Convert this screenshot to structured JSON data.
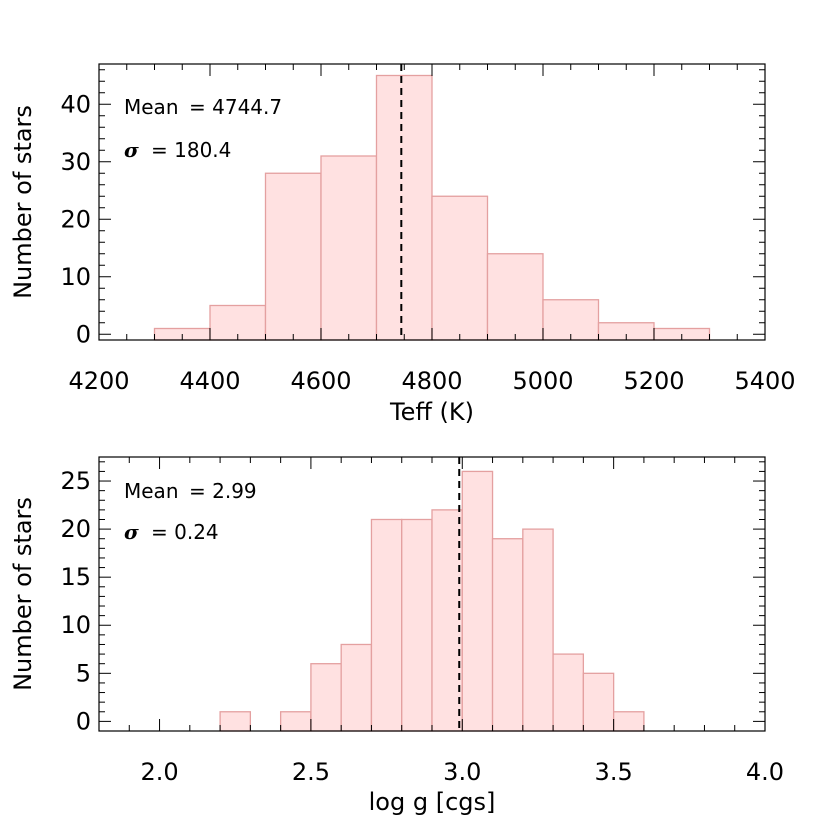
{
  "colors": {
    "bar_fill": "#ffe1e1",
    "bar_stroke": "#e4a0a0",
    "mean_line": "#000000",
    "axis": "#000000"
  },
  "chart_data": [
    {
      "type": "bar",
      "name": "teff",
      "xlabel": "Teff (K)",
      "ylabel": "Number of stars",
      "xlim": [
        4200,
        5400
      ],
      "ylim": [
        -1,
        47
      ],
      "xticks": [
        4200,
        4400,
        4600,
        4800,
        5000,
        5200,
        5400
      ],
      "xtick_labels": [
        "4200",
        "4400",
        "4600",
        "4800",
        "5000",
        "5200",
        "5400"
      ],
      "xminor_step": 50,
      "yticks": [
        0,
        10,
        20,
        30,
        40
      ],
      "ytick_labels": [
        "0",
        "10",
        "20",
        "30",
        "40"
      ],
      "yminor_step": 2,
      "bins": [
        {
          "x0": 4300,
          "x1": 4400,
          "count": 1
        },
        {
          "x0": 4400,
          "x1": 4500,
          "count": 5
        },
        {
          "x0": 4500,
          "x1": 4600,
          "count": 28
        },
        {
          "x0": 4600,
          "x1": 4700,
          "count": 31
        },
        {
          "x0": 4700,
          "x1": 4800,
          "count": 45
        },
        {
          "x0": 4800,
          "x1": 4900,
          "count": 24
        },
        {
          "x0": 4900,
          "x1": 5000,
          "count": 14
        },
        {
          "x0": 5000,
          "x1": 5100,
          "count": 6
        },
        {
          "x0": 5100,
          "x1": 5200,
          "count": 2
        },
        {
          "x0": 5200,
          "x1": 5300,
          "count": 1
        }
      ],
      "mean": 4744.7,
      "sigma": 180.4,
      "annotations": {
        "mean_label": "Mean",
        "mean_text": "= 4744.7",
        "sigma_symbol": "σ",
        "sigma_text": "= 180.4"
      }
    },
    {
      "type": "bar",
      "name": "logg",
      "xlabel": "log g [cgs]",
      "ylabel": "Number of stars",
      "xlim": [
        1.8,
        4.0
      ],
      "ylim": [
        -1,
        27.5
      ],
      "xticks": [
        2.0,
        2.5,
        3.0,
        3.5,
        4.0
      ],
      "xtick_labels": [
        "2.0",
        "2.5",
        "3.0",
        "3.5",
        "4.0"
      ],
      "xminor_step": 0.1,
      "yticks": [
        0,
        5,
        10,
        15,
        20,
        25
      ],
      "ytick_labels": [
        "0",
        "5",
        "10",
        "15",
        "20",
        "25"
      ],
      "yminor_step": 1,
      "bins": [
        {
          "x0": 2.2,
          "x1": 2.3,
          "count": 1
        },
        {
          "x0": 2.4,
          "x1": 2.5,
          "count": 1
        },
        {
          "x0": 2.5,
          "x1": 2.6,
          "count": 6
        },
        {
          "x0": 2.6,
          "x1": 2.7,
          "count": 8
        },
        {
          "x0": 2.7,
          "x1": 2.8,
          "count": 21
        },
        {
          "x0": 2.8,
          "x1": 2.9,
          "count": 21
        },
        {
          "x0": 2.9,
          "x1": 3.0,
          "count": 22
        },
        {
          "x0": 3.0,
          "x1": 3.1,
          "count": 26
        },
        {
          "x0": 3.1,
          "x1": 3.2,
          "count": 19
        },
        {
          "x0": 3.2,
          "x1": 3.3,
          "count": 20
        },
        {
          "x0": 3.3,
          "x1": 3.4,
          "count": 7
        },
        {
          "x0": 3.4,
          "x1": 3.5,
          "count": 5
        },
        {
          "x0": 3.5,
          "x1": 3.6,
          "count": 1
        }
      ],
      "mean": 2.99,
      "sigma": 0.24,
      "annotations": {
        "mean_label": "Mean",
        "mean_text": "= 2.99",
        "sigma_symbol": "σ",
        "sigma_text": "= 0.24"
      }
    }
  ]
}
